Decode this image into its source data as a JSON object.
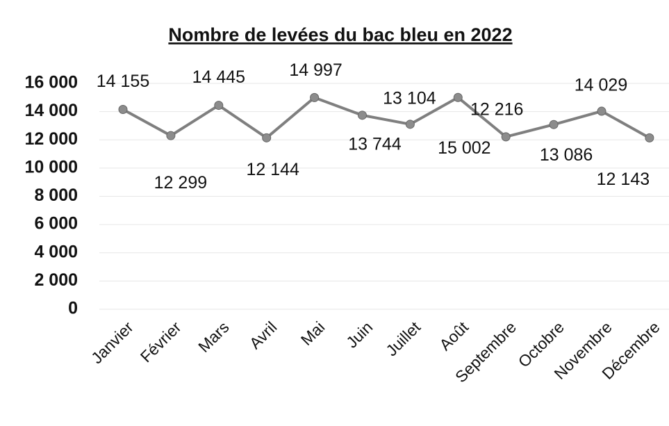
{
  "chart_data": {
    "type": "line",
    "title": "Nombre de levées du bac bleu en 2022",
    "categories": [
      "Janvier",
      "Février",
      "Mars",
      "Avril",
      "Mai",
      "Juin",
      "Juillet",
      "Août",
      "Septembre",
      "Octobre",
      "Novembre",
      "Décembre"
    ],
    "values": [
      14155,
      12299,
      14445,
      12144,
      14997,
      13744,
      13104,
      15002,
      12216,
      13086,
      14029,
      12143
    ],
    "value_labels": [
      "14 155",
      "12 299",
      "14 445",
      "12 144",
      "14 997",
      "13 744",
      "13 104",
      "15 002",
      "12 216",
      "13 086",
      "14 029",
      "12 143"
    ],
    "color": "#7f7f7f",
    "ylim": [
      0,
      16000
    ],
    "yticks": [
      0,
      {
        "value": 2000,
        "label": "2 000"
      },
      {
        "value": 4000,
        "label": "4 000"
      },
      {
        "value": 6000,
        "label": "6 000"
      },
      {
        "value": 8000,
        "label": "8 000"
      },
      {
        "value": 10000,
        "label": "10 000"
      },
      {
        "value": 12000,
        "label": "12 000"
      },
      {
        "value": 14000,
        "label": "14 000"
      },
      {
        "value": 16000,
        "label": "16 000"
      }
    ],
    "grid": true
  }
}
